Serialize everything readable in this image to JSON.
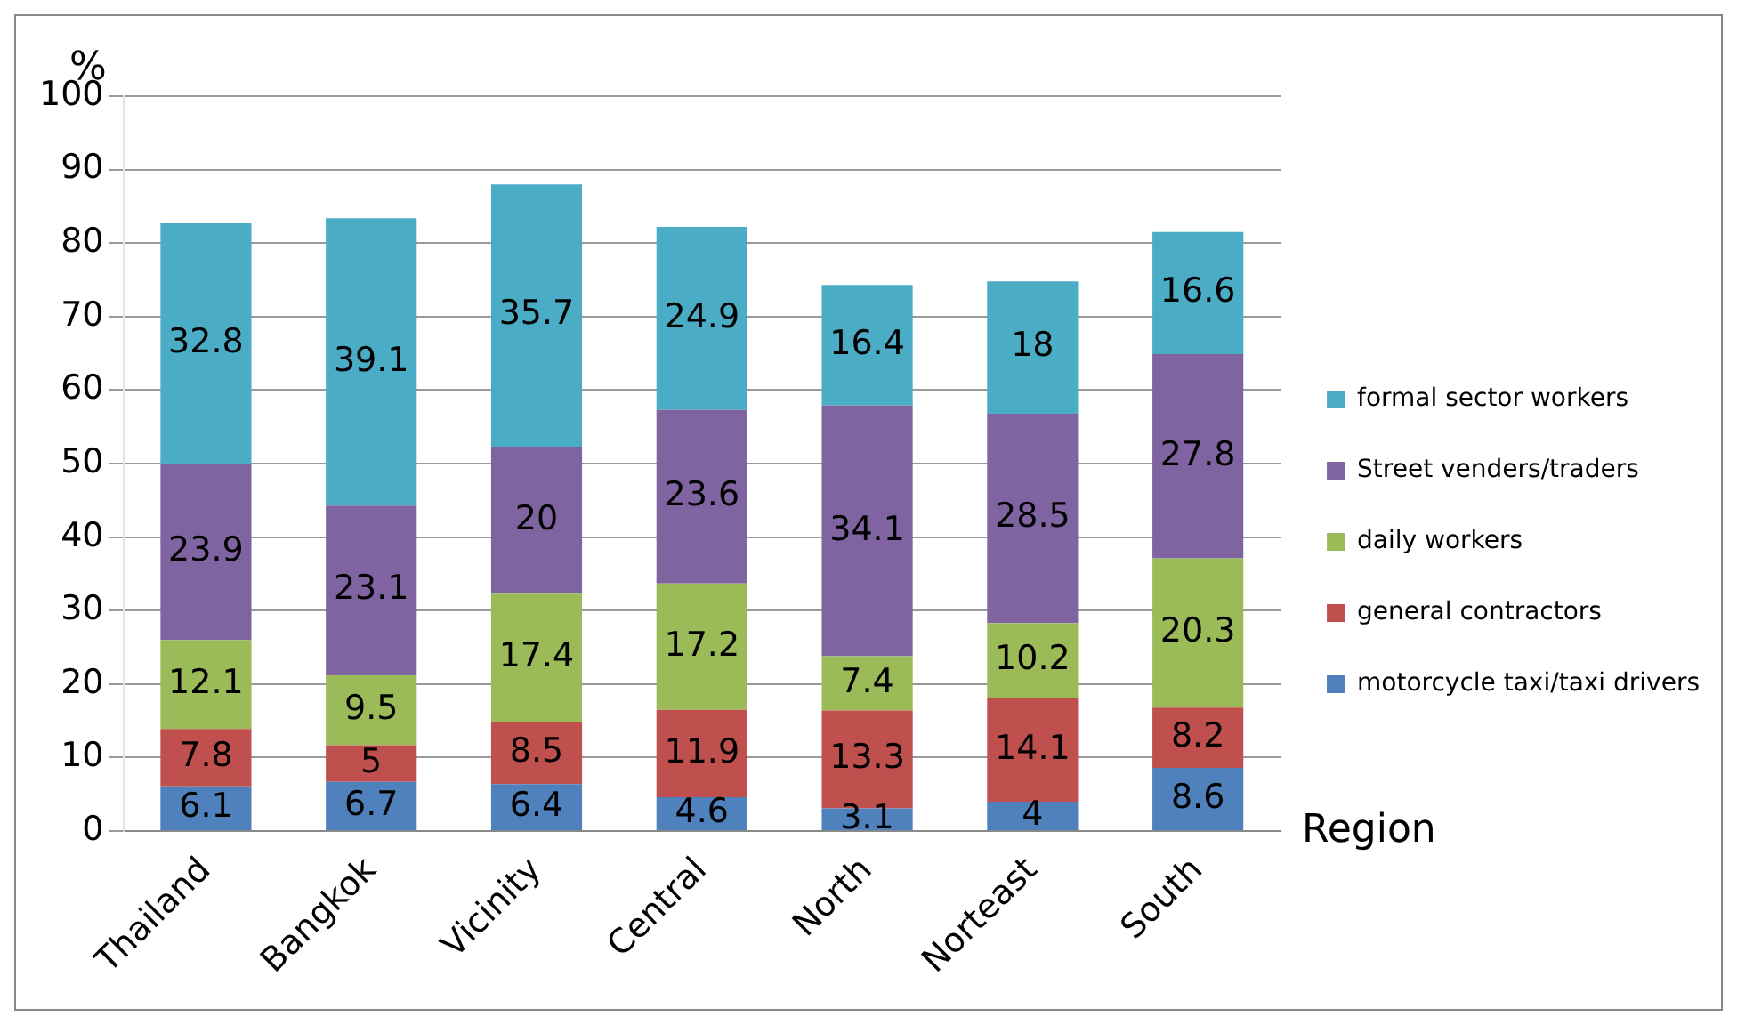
{
  "chart_data": {
    "type": "bar",
    "stacked": true,
    "ylabel": "%",
    "xlabel": "Region",
    "categories": [
      "Thailand",
      "Bangkok",
      "Vicinity",
      "Central",
      "North",
      "Norteast",
      "South"
    ],
    "series": [
      {
        "name": "motorcycle taxi/taxi drivers",
        "color": "#4f81bd",
        "values": [
          6.1,
          6.7,
          6.4,
          4.6,
          3.1,
          4,
          8.6
        ]
      },
      {
        "name": "general contractors",
        "color": "#c0504d",
        "values": [
          7.8,
          5,
          8.5,
          11.9,
          13.3,
          14.1,
          8.2
        ]
      },
      {
        "name": "daily workers",
        "color": "#9bbb59",
        "values": [
          12.1,
          9.5,
          17.4,
          17.2,
          7.4,
          10.2,
          20.3
        ]
      },
      {
        "name": "Street venders/traders",
        "color": "#8064a2",
        "values": [
          23.9,
          23.1,
          20,
          23.6,
          34.1,
          28.5,
          27.8
        ]
      },
      {
        "name": "formal sector workers",
        "color": "#4bacc6",
        "values": [
          32.8,
          39.1,
          35.7,
          24.9,
          16.4,
          18,
          16.6
        ]
      }
    ],
    "ylim": [
      0,
      100
    ],
    "yticks": [
      0,
      10,
      20,
      30,
      40,
      50,
      60,
      70,
      80,
      90,
      100
    ],
    "grid": "y",
    "legend": "right",
    "data_labels": true
  }
}
